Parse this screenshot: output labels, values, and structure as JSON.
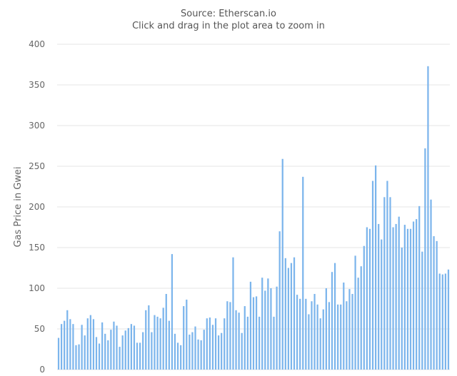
{
  "chart_data": {
    "type": "bar",
    "subtitle_lines": [
      "Source: Etherscan.io",
      "Click and drag in the plot area to zoom in"
    ],
    "ylabel": "Gas Price in Gwei",
    "ylim": [
      0,
      400
    ],
    "yticks": [
      "0",
      "50",
      "100",
      "150",
      "200",
      "250",
      "300",
      "350",
      "400"
    ],
    "grid": true,
    "bar_color": "#7cb5ec",
    "values": [
      39,
      56,
      60,
      73,
      62,
      56,
      30,
      31,
      55,
      42,
      63,
      67,
      62,
      40,
      32,
      58,
      44,
      36,
      49,
      59,
      54,
      28,
      42,
      48,
      51,
      56,
      54,
      33,
      33,
      46,
      73,
      79,
      46,
      67,
      65,
      63,
      76,
      93,
      60,
      142,
      44,
      33,
      30,
      78,
      86,
      43,
      46,
      53,
      37,
      36,
      49,
      63,
      64,
      55,
      63,
      42,
      45,
      63,
      84,
      83,
      138,
      73,
      70,
      45,
      78,
      65,
      108,
      89,
      90,
      65,
      113,
      97,
      112,
      100,
      65,
      102,
      170,
      259,
      137,
      125,
      131,
      138,
      92,
      87,
      237,
      87,
      68,
      84,
      93,
      80,
      63,
      74,
      100,
      83,
      120,
      131,
      80,
      80,
      107,
      84,
      99,
      93,
      140,
      113,
      127,
      152,
      175,
      173,
      232,
      251,
      179,
      160,
      212,
      232,
      212,
      175,
      179,
      188,
      150,
      178,
      173,
      173,
      182,
      185,
      201,
      145,
      272,
      373,
      209,
      164,
      158,
      118,
      117,
      118,
      123
    ]
  }
}
